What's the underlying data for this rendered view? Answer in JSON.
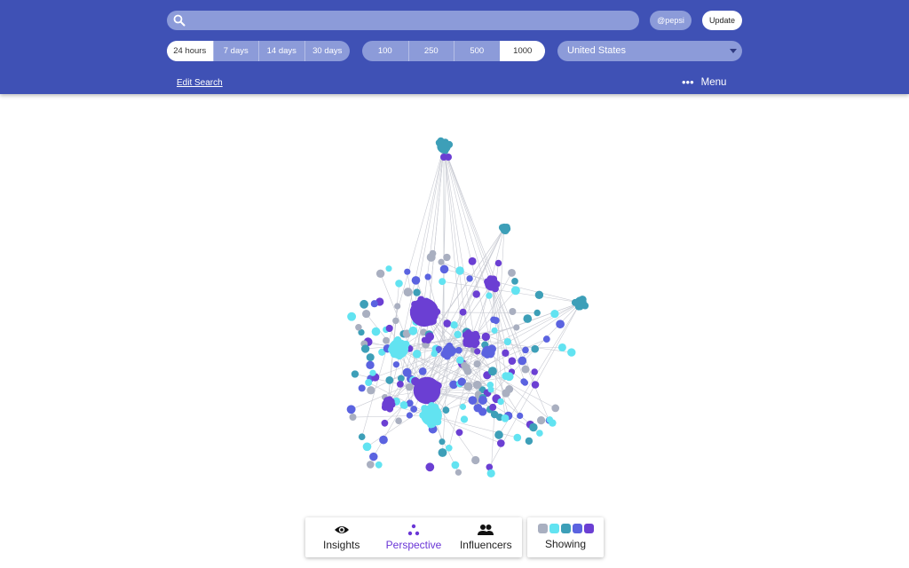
{
  "header": {
    "search_placeholder": "",
    "handle": "@pepsi",
    "update_label": "Update",
    "time_ranges": [
      {
        "label": "24 hours",
        "active": true
      },
      {
        "label": "7 days",
        "active": false
      },
      {
        "label": "14 days",
        "active": false
      },
      {
        "label": "30 days",
        "active": false
      }
    ],
    "counts": [
      {
        "label": "100",
        "active": false
      },
      {
        "label": "250",
        "active": false
      },
      {
        "label": "500",
        "active": false
      },
      {
        "label": "1000",
        "active": true
      }
    ],
    "country": "United States",
    "edit_search_label": "Edit Search",
    "menu_label": "Menu"
  },
  "colors": {
    "header_bg": "#3f51b5",
    "pill_bg": "#8c9bd9",
    "node_gray": "#a9afc0",
    "node_cyan": "#62e3f1",
    "node_teal": "#3d9fb8",
    "node_blue": "#5b63e0",
    "node_purple": "#6b3fd3",
    "accent": "#6a36d6"
  },
  "graph": {
    "icon": "network-graph"
  },
  "toolbar": {
    "items": [
      {
        "label": "Insights",
        "icon": "eye-icon",
        "active": false
      },
      {
        "label": "Perspective",
        "icon": "scatter-dots-icon",
        "active": true
      },
      {
        "label": "Influencers",
        "icon": "people-icon",
        "active": false
      }
    ]
  },
  "showing": {
    "label": "Showing",
    "swatches": [
      "#a9afc0",
      "#62e3f1",
      "#3d9fb8",
      "#5b63e0",
      "#6b3fd3"
    ]
  }
}
